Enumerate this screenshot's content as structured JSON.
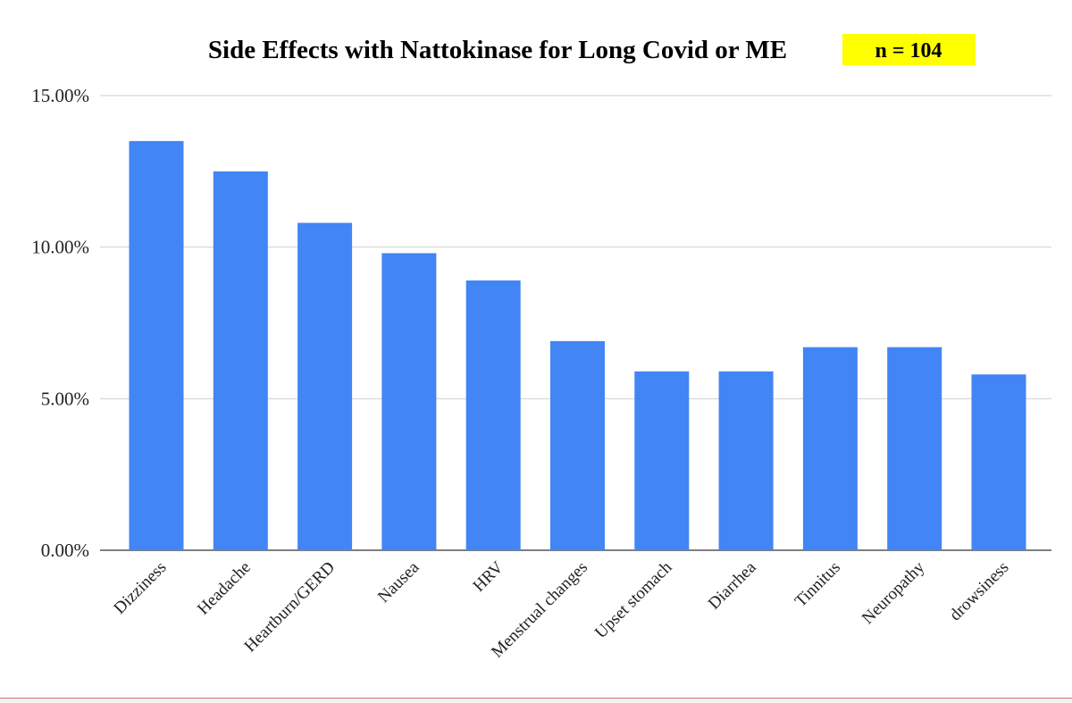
{
  "chart_data": {
    "type": "bar",
    "title": "Side Effects with Nattokinase for Long Covid or ME",
    "badge": {
      "text": "n = 104",
      "color": "#ffff00"
    },
    "xlabel": "",
    "ylabel": "",
    "categories": [
      "Dizziness",
      "Headache",
      "Heartburn/GERD",
      "Nausea",
      "HRV",
      "Menstrual changes",
      "Upset stomach",
      "Diarrhea",
      "Tinnitus",
      "Neuropathy",
      "drowsiness"
    ],
    "values": [
      13.5,
      12.5,
      10.8,
      9.8,
      8.9,
      6.9,
      5.9,
      5.9,
      6.7,
      6.7,
      5.8
    ],
    "ylim": [
      0,
      15
    ],
    "yticks": [
      {
        "value": 0,
        "label": "0.00%"
      },
      {
        "value": 5,
        "label": "5.00%"
      },
      {
        "value": 10,
        "label": "10.00%"
      },
      {
        "value": 15,
        "label": "15.00%"
      }
    ],
    "bar_color": "#4285f4",
    "grid": true,
    "legend": "none"
  }
}
